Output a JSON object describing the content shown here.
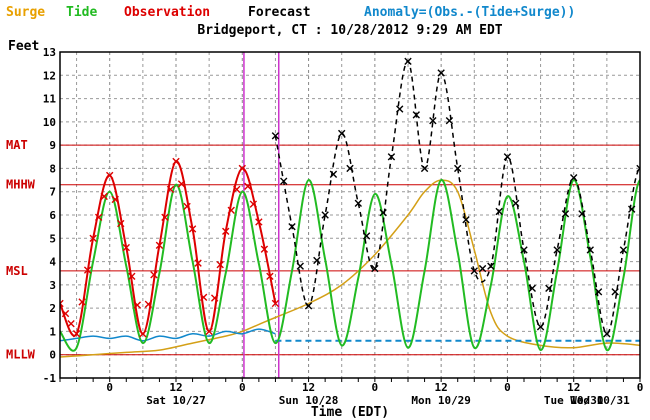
{
  "chart_data": {
    "type": "line",
    "title": "Bridgeport, CT : 10/28/2012 9:29 AM EDT",
    "ylabel": "Feet",
    "xlabel": "Time (EDT)",
    "ylim": [
      -1,
      13
    ],
    "yticks": [
      -1,
      0,
      1,
      2,
      3,
      4,
      5,
      6,
      7,
      8,
      9,
      10,
      11,
      12,
      13
    ],
    "xlim_hours": [
      -9,
      96
    ],
    "legend": [
      {
        "label": "Surge",
        "color": "#e8a000"
      },
      {
        "label": "Tide",
        "color": "#22bb22"
      },
      {
        "label": "Observation",
        "color": "#dd0000"
      },
      {
        "label": "Forecast",
        "color": "#000000"
      },
      {
        "label": "Anomaly=(Obs.-(Tide+Surge))",
        "color": "#1188cc"
      }
    ],
    "datums": [
      {
        "label": "MAT",
        "value": 9.0
      },
      {
        "label": "MHHW",
        "value": 7.3
      },
      {
        "label": "MSL",
        "value": 3.6
      },
      {
        "label": "MLLW",
        "value": 0.0
      }
    ],
    "x_tick_labels": [
      {
        "hour": 0,
        "label": "0"
      },
      {
        "hour": 12,
        "label": "12"
      },
      {
        "hour": 24,
        "label": "0"
      },
      {
        "hour": 36,
        "label": "12"
      },
      {
        "hour": 48,
        "label": "0"
      },
      {
        "hour": 60,
        "label": "12"
      },
      {
        "hour": 72,
        "label": "0"
      },
      {
        "hour": 84,
        "label": "12"
      },
      {
        "hour": 96,
        "label": "0"
      }
    ],
    "day_labels": [
      {
        "hour": 12,
        "label": "Sat 10/27"
      },
      {
        "hour": 36,
        "label": "Sun 10/28"
      },
      {
        "hour": 60,
        "label": "Mon 10/29"
      },
      {
        "hour": 84,
        "label": "Tue 10/30"
      },
      {
        "hour": 108,
        "label": "Wed 10/31"
      }
    ],
    "now_markers_hours": [
      24.3,
      30.6
    ],
    "series": [
      {
        "name": "Tide",
        "x": [
          -9,
          -6,
          -3,
          0,
          3,
          6,
          9,
          12,
          15,
          18,
          21,
          24,
          27,
          30,
          33,
          36,
          39,
          42,
          45,
          48,
          51,
          54,
          57,
          60,
          63,
          66,
          69,
          72,
          75,
          78,
          81,
          84,
          87,
          90,
          93,
          96,
          99,
          102,
          105,
          108,
          111,
          114
        ],
        "y": [
          1.0,
          0.3,
          4.0,
          7.0,
          3.8,
          0.5,
          3.5,
          7.3,
          4.0,
          0.5,
          3.5,
          7.0,
          3.9,
          0.5,
          3.6,
          7.5,
          4.1,
          0.4,
          3.3,
          6.9,
          3.9,
          0.3,
          3.6,
          7.5,
          4.4,
          0.3,
          3.0,
          6.8,
          4.0,
          0.2,
          3.6,
          7.5,
          4.2,
          0.2,
          3.3,
          7.5,
          4.2,
          0.3,
          3.3,
          7.6,
          4.0,
          6.6
        ]
      },
      {
        "name": "Observation",
        "x": [
          -9,
          -6,
          -3,
          0,
          3,
          6,
          9,
          12,
          15,
          18,
          21,
          24,
          27,
          30
        ],
        "y": [
          2.2,
          0.9,
          5.0,
          7.7,
          4.6,
          0.9,
          4.7,
          8.3,
          5.4,
          1.0,
          5.3,
          8.0,
          5.7,
          2.2
        ]
      },
      {
        "name": "Forecast",
        "x": [
          30,
          33,
          36,
          39,
          42,
          45,
          48,
          51,
          54,
          57,
          60,
          63,
          66,
          69,
          72,
          75,
          78,
          81,
          84,
          87,
          90,
          93,
          96,
          99,
          102,
          105,
          108,
          111,
          114
        ],
        "y": [
          9.4,
          5.5,
          2.1,
          6.0,
          9.5,
          6.5,
          3.7,
          8.5,
          12.6,
          8.0,
          12.1,
          8.0,
          3.6,
          3.8,
          8.5,
          4.5,
          1.2,
          4.5,
          7.6,
          4.5,
          0.9,
          4.5,
          8.0,
          4.8,
          1.1,
          4.5,
          7.1,
          4.0,
          6.8
        ]
      },
      {
        "name": "Surge",
        "x": [
          -9,
          -3,
          3,
          9,
          15,
          21,
          24,
          27,
          30,
          36,
          42,
          48,
          54,
          57,
          60,
          63,
          66,
          69,
          72,
          78,
          84,
          90,
          96,
          102,
          108,
          114
        ],
        "y": [
          -0.1,
          0.0,
          0.1,
          0.2,
          0.5,
          0.8,
          1.0,
          1.3,
          1.6,
          2.2,
          3.0,
          4.3,
          6.0,
          7.0,
          7.5,
          7.0,
          4.5,
          1.8,
          0.8,
          0.4,
          0.3,
          0.5,
          0.4,
          0.2,
          0.0,
          -0.2
        ]
      },
      {
        "name": "Anomaly observed",
        "x": [
          -9,
          -6,
          -3,
          0,
          3,
          6,
          9,
          12,
          15,
          18,
          21,
          24,
          27,
          30
        ],
        "y": [
          0.6,
          0.7,
          0.8,
          0.7,
          0.8,
          0.6,
          0.8,
          0.7,
          0.9,
          0.8,
          1.0,
          0.9,
          1.1,
          0.9
        ]
      },
      {
        "name": "Anomaly forecast",
        "x": [
          30,
          114
        ],
        "y": [
          0.6,
          0.6
        ]
      }
    ]
  }
}
